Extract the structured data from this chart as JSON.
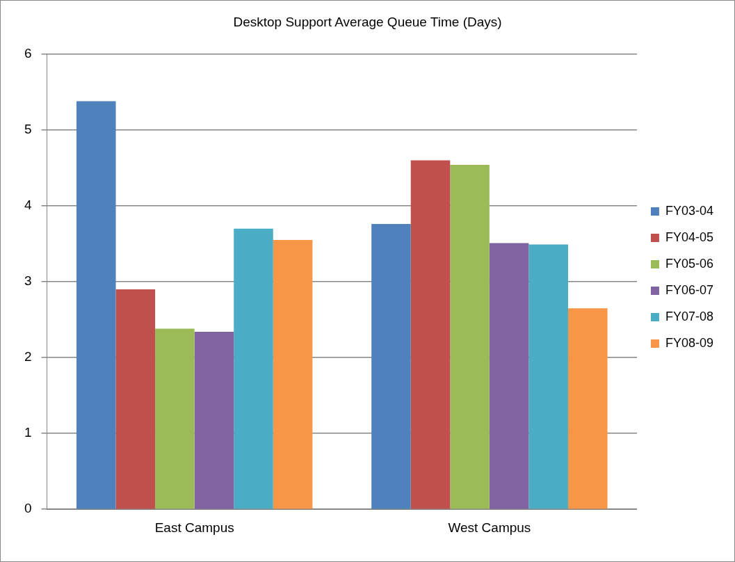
{
  "chart_data": {
    "type": "bar",
    "title": "Desktop Support Average Queue Time (Days)",
    "categories": [
      "East Campus",
      "West Campus"
    ],
    "series": [
      {
        "name": "FY03-04",
        "color": "#4f81bd",
        "values": [
          5.38,
          3.76
        ]
      },
      {
        "name": "FY04-05",
        "color": "#c0504d",
        "values": [
          2.9,
          4.6
        ]
      },
      {
        "name": "FY05-06",
        "color": "#9bbb59",
        "values": [
          2.38,
          4.54
        ]
      },
      {
        "name": "FY06-07",
        "color": "#8064a2",
        "values": [
          2.34,
          3.51
        ]
      },
      {
        "name": "FY07-08",
        "color": "#4bacc6",
        "values": [
          3.7,
          3.49
        ]
      },
      {
        "name": "FY08-09",
        "color": "#f79646",
        "values": [
          3.55,
          2.65
        ]
      }
    ],
    "ylim": [
      0,
      6
    ],
    "yticks": [
      0,
      1,
      2,
      3,
      4,
      5,
      6
    ],
    "grid": "y",
    "legend": "right"
  }
}
